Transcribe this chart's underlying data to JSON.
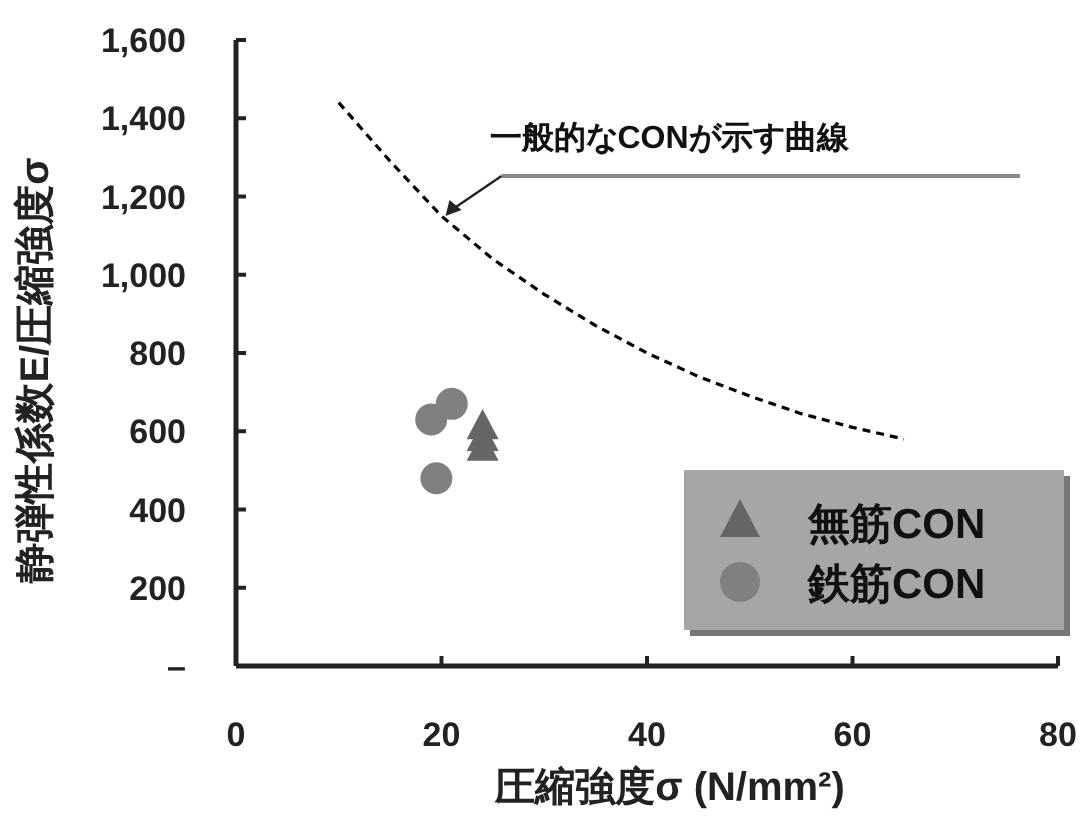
{
  "chart_data": {
    "type": "scatter",
    "xlabel": "圧縮強度σ (N/mm²)",
    "ylabel": "静弾性係数E/圧縮強度σ",
    "xlim": [
      0,
      80
    ],
    "ylim": [
      0,
      1600
    ],
    "xticks": [
      0,
      20,
      40,
      60,
      80
    ],
    "yticks": [
      {
        "value": 0,
        "label": "–"
      },
      {
        "value": 200,
        "label": "200"
      },
      {
        "value": 400,
        "label": "400"
      },
      {
        "value": 600,
        "label": "600"
      },
      {
        "value": 800,
        "label": "800"
      },
      {
        "value": 1000,
        "label": "1,000"
      },
      {
        "value": 1200,
        "label": "1,200"
      },
      {
        "value": 1400,
        "label": "1,400"
      },
      {
        "value": 1600,
        "label": "1,600"
      }
    ],
    "annotations": [
      {
        "text": "一般的なCONが示す曲線",
        "x": 20,
        "y": 1150
      }
    ],
    "legend": "bottom right",
    "grid": false,
    "series": [
      {
        "name": "無筋CON",
        "color": "#666666",
        "marker": "triangle",
        "x": [
          24,
          24,
          24
        ],
        "values": [
          610,
          580,
          555
        ]
      },
      {
        "name": "鉄筋CON",
        "color": "#808080",
        "marker": "circle",
        "x": [
          19,
          21,
          19.5
        ],
        "values": [
          630,
          670,
          480
        ]
      },
      {
        "type": "line",
        "color": "#000000",
        "line_style": "dashed",
        "marker": "none",
        "x": [
          10,
          15,
          20,
          25,
          30,
          35,
          40,
          45,
          50,
          55,
          60,
          65
        ],
        "values": [
          1440,
          1290,
          1150,
          1040,
          950,
          870,
          800,
          740,
          690,
          645,
          610,
          580
        ]
      }
    ]
  }
}
